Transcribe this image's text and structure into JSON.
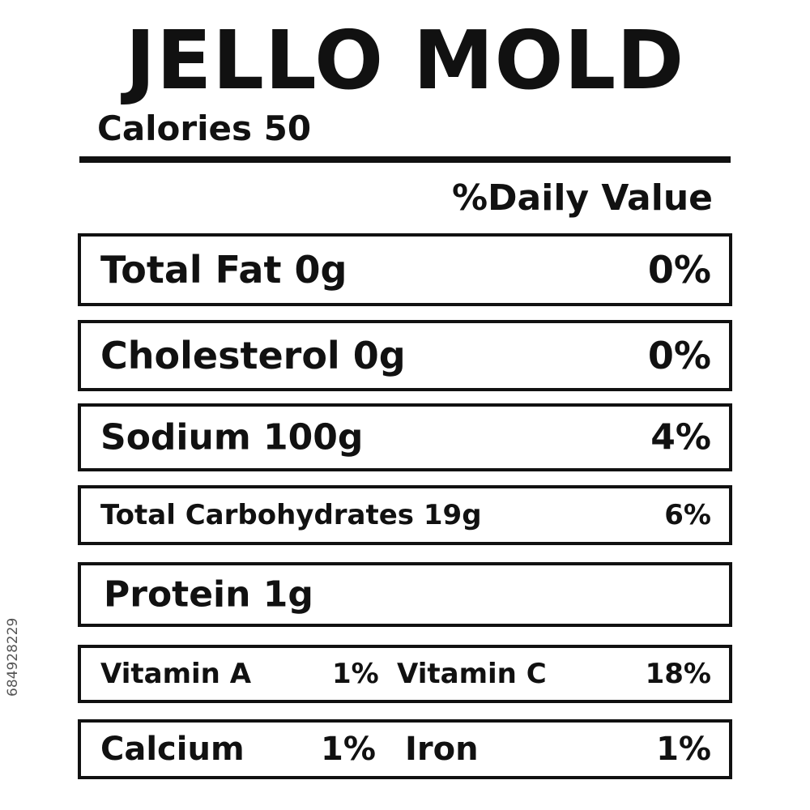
{
  "title": "JELLO MOLD",
  "calories": "Calories 50",
  "daily_value_header": "%Daily Value",
  "rows": [
    [
      "Total Fat 0g",
      "0%"
    ],
    [
      "Cholesterol 0g",
      "0%"
    ],
    [
      "Sodium 100g",
      "4%"
    ],
    [
      "Total Carbohydrates 19g",
      "6%"
    ],
    [
      "Protein 1g"
    ],
    [
      "Vitamin A",
      "1%",
      "Vitamin C",
      "18%"
    ],
    [
      "Calcium",
      "1%",
      "Iron",
      "1%"
    ]
  ],
  "watermark_id": "684928229"
}
